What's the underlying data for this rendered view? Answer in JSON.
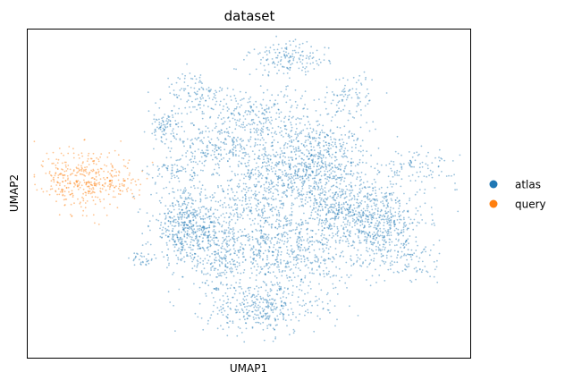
{
  "chart_data": {
    "type": "scatter",
    "title": "dataset",
    "xlabel": "UMAP1",
    "ylabel": "UMAP2",
    "grid": false,
    "legend_placement": "right",
    "axis_ticks": false,
    "series": [
      {
        "name": "atlas",
        "color": "#1f77b4",
        "clusters": [
          {
            "x": 0.64,
            "y": 0.58,
            "sx": 0.065,
            "sy": 0.07,
            "weight": 3.2
          },
          {
            "x": 0.78,
            "y": 0.42,
            "sx": 0.06,
            "sy": 0.06,
            "weight": 2.4
          },
          {
            "x": 0.57,
            "y": 0.33,
            "sx": 0.085,
            "sy": 0.07,
            "weight": 2.8
          },
          {
            "x": 0.53,
            "y": 0.15,
            "sx": 0.065,
            "sy": 0.04,
            "weight": 1.3
          },
          {
            "x": 0.36,
            "y": 0.4,
            "sx": 0.04,
            "sy": 0.055,
            "weight": 2.0
          },
          {
            "x": 0.43,
            "y": 0.32,
            "sx": 0.03,
            "sy": 0.065,
            "weight": 0.7
          },
          {
            "x": 0.52,
            "y": 0.73,
            "sx": 0.06,
            "sy": 0.05,
            "weight": 1.1
          },
          {
            "x": 0.44,
            "y": 0.63,
            "sx": 0.05,
            "sy": 0.04,
            "weight": 0.9
          },
          {
            "x": 0.59,
            "y": 0.91,
            "sx": 0.045,
            "sy": 0.025,
            "weight": 0.6
          },
          {
            "x": 0.31,
            "y": 0.7,
            "sx": 0.02,
            "sy": 0.025,
            "weight": 0.35
          },
          {
            "x": 0.38,
            "y": 0.8,
            "sx": 0.035,
            "sy": 0.035,
            "weight": 0.45
          },
          {
            "x": 0.51,
            "y": 0.49,
            "sx": 0.045,
            "sy": 0.05,
            "weight": 0.8
          },
          {
            "x": 0.73,
            "y": 0.8,
            "sx": 0.035,
            "sy": 0.035,
            "weight": 0.35
          },
          {
            "x": 0.88,
            "y": 0.58,
            "sx": 0.045,
            "sy": 0.025,
            "weight": 0.35
          },
          {
            "x": 0.26,
            "y": 0.3,
            "sx": 0.012,
            "sy": 0.012,
            "weight": 0.12
          },
          {
            "x": 0.32,
            "y": 0.57,
            "sx": 0.03,
            "sy": 0.02,
            "weight": 0.25
          },
          {
            "x": 0.7,
            "y": 0.46,
            "sx": 0.04,
            "sy": 0.03,
            "weight": 0.5
          },
          {
            "x": 0.86,
            "y": 0.3,
            "sx": 0.035,
            "sy": 0.04,
            "weight": 0.4
          }
        ]
      },
      {
        "name": "query",
        "color": "#ff7f0e",
        "clusters": [
          {
            "x": 0.13,
            "y": 0.54,
            "sx": 0.04,
            "sy": 0.055,
            "weight": 1.0
          },
          {
            "x": 0.2,
            "y": 0.54,
            "sx": 0.03,
            "sy": 0.03,
            "weight": 0.35
          },
          {
            "x": 0.07,
            "y": 0.55,
            "sx": 0.02,
            "sy": 0.03,
            "weight": 0.25
          }
        ]
      }
    ]
  }
}
